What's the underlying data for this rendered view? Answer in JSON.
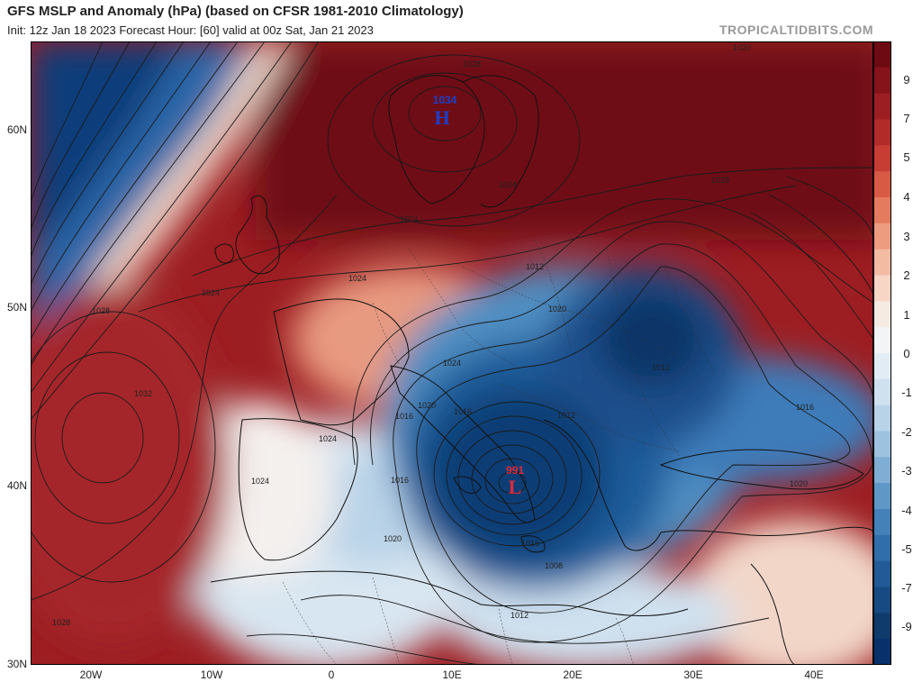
{
  "title": "GFS MSLP and Anomaly (hPa) (based on CFSR 1981-2010 Climatology)",
  "subtitle": "Init: 12z Jan 18 2023   Forecast Hour: [60]   valid at 00z Sat, Jan 21 2023",
  "brand": "TROPICALTIDBITS.COM",
  "map": {
    "lat_labels": [
      "60N",
      "50N",
      "40N",
      "30N"
    ],
    "lon_labels": [
      "20W",
      "10W",
      "0",
      "10E",
      "20E",
      "30E",
      "40E"
    ],
    "high": {
      "symbol": "H",
      "value": "1034"
    },
    "low": {
      "symbol": "L",
      "value": "991"
    },
    "isobar_labels": [
      "1028",
      "1024",
      "1024",
      "1028",
      "1032",
      "1024",
      "1024",
      "1024",
      "1028",
      "1024",
      "1020",
      "1020",
      "1016",
      "1016",
      "1012",
      "1012",
      "1012",
      "1016",
      "1008",
      "1012",
      "1016",
      "1016",
      "1020",
      "1020",
      "1020",
      "1024",
      "1028"
    ]
  },
  "colorbar": {
    "labels": [
      "9",
      "7",
      "5",
      "4",
      "3",
      "2",
      "1",
      "0",
      "-1",
      "-2",
      "-3",
      "-4",
      "-5",
      "-7",
      "-9"
    ]
  },
  "colors": {
    "positive_max": "#7b0d14",
    "positive_mid": "#c73c33",
    "neutral": "#f7f4f1",
    "negative_mid": "#2f6fae",
    "negative_max": "#08306b"
  }
}
